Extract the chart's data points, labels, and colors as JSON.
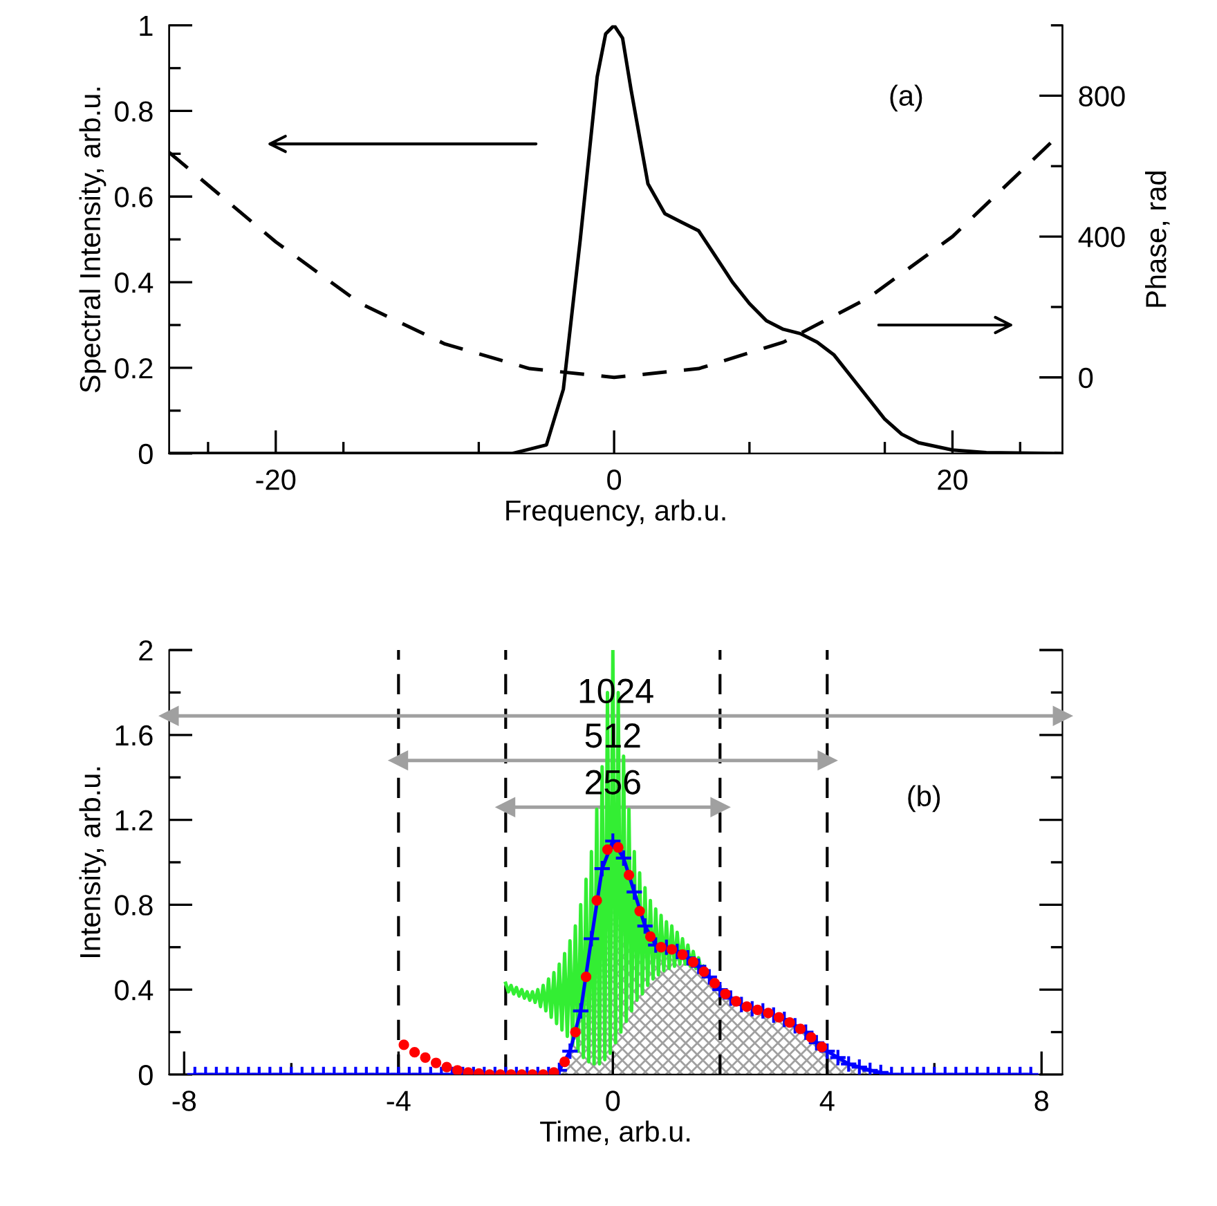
{
  "chart_data": [
    {
      "type": "line",
      "xlabel": "Frequency, arb.u.",
      "ylabel": "Spectral Intensity, arb.u.",
      "y2label": "Phase, rad",
      "xlim": [
        -26.3,
        26.5
      ],
      "xticks": [
        {
          "value": -24,
          "label": null
        },
        -20,
        {
          "value": -16,
          "label": null
        },
        {
          "value": -8,
          "label": null
        },
        0,
        {
          "value": 8,
          "label": null
        },
        {
          "value": 16,
          "label": null
        },
        20,
        {
          "value": 24,
          "label": null
        }
      ],
      "ylim": [
        0,
        1
      ],
      "yticks": [
        0,
        {
          "value": 0.1,
          "label": null
        },
        0.2,
        {
          "value": 0.3,
          "label": null
        },
        0.4,
        {
          "value": 0.5,
          "label": null
        },
        0.6,
        {
          "value": 0.7,
          "label": null
        },
        0.8,
        {
          "value": 0.9,
          "label": null
        },
        1
      ],
      "y2lim": [
        -216,
        1000
      ],
      "y2ticks": [
        0,
        {
          "value": 200,
          "label": null
        },
        400,
        {
          "value": 600,
          "label": null
        },
        800,
        {
          "value": 1000,
          "label": null
        }
      ],
      "annotations": [
        "(a)"
      ],
      "grid": false,
      "legend": false,
      "series": [
        {
          "color": "#000000",
          "line_style": "solid",
          "x": [
            -26.3,
            -6,
            -4,
            -3,
            -2,
            -1,
            -0.5,
            0,
            0.5,
            1,
            2,
            3,
            4,
            5,
            6,
            7,
            8,
            9,
            10,
            11,
            12,
            13,
            14,
            15,
            16,
            17,
            18,
            20,
            22,
            26.5
          ],
          "values": [
            0,
            0,
            0.02,
            0.15,
            0.5,
            0.88,
            0.98,
            1,
            0.97,
            0.85,
            0.63,
            0.56,
            0.54,
            0.52,
            0.46,
            0.4,
            0.35,
            0.31,
            0.29,
            0.28,
            0.26,
            0.23,
            0.18,
            0.13,
            0.08,
            0.045,
            0.025,
            0.008,
            0.002,
            0
          ]
        },
        {
          "color": "#000000",
          "line_style": "dashed",
          "axis": "y2",
          "x": [
            -26.3,
            -20,
            -15,
            -10,
            -5,
            0,
            5,
            10,
            15,
            20,
            26.5
          ],
          "values": [
            639,
            385,
            210,
            95,
            25,
            0,
            25,
            100,
            225,
            400,
            698
          ]
        }
      ]
    },
    {
      "type": "line",
      "xlabel": "Time, arb.u.",
      "ylabel": "Intensity, arb.u.",
      "xlim": [
        -8.28,
        8.39
      ],
      "xticks": [
        -8,
        {
          "value": -6,
          "label": null
        },
        -4,
        {
          "value": -2,
          "label": null
        },
        0,
        {
          "value": 2,
          "label": null
        },
        4,
        {
          "value": 6,
          "label": null
        },
        8
      ],
      "ylim": [
        0,
        2
      ],
      "yticks": [
        0,
        {
          "value": 0.2,
          "label": null
        },
        0.4,
        {
          "value": 0.6,
          "label": null
        },
        0.8,
        {
          "value": 1.0,
          "label": null
        },
        1.2,
        {
          "value": 1.4,
          "label": null
        },
        1.6,
        {
          "value": 1.8,
          "label": null
        },
        2
      ],
      "annotations": [
        "(b)"
      ],
      "grid": false,
      "legend": false,
      "ref_lines": [
        {
          "axis": "x",
          "value": -4,
          "color": "#000000",
          "line_style": "dashed"
        },
        {
          "axis": "x",
          "value": -2,
          "color": "#000000",
          "line_style": "dashed"
        },
        {
          "axis": "x",
          "value": 2,
          "color": "#000000",
          "line_style": "dashed"
        },
        {
          "axis": "x",
          "value": 4,
          "color": "#000000",
          "line_style": "dashed"
        }
      ],
      "series": [
        {
          "name": "1024",
          "color": "#a0a0a0",
          "line_style": "solid",
          "marker": "triangle",
          "x": [
            -8.28,
            8.39
          ],
          "values": [
            1.69,
            1.69
          ]
        },
        {
          "name": "512",
          "color": "#a0a0a0",
          "line_style": "solid",
          "marker": "triangle",
          "x": [
            -4,
            4
          ],
          "values": [
            1.48,
            1.48
          ]
        },
        {
          "name": "256",
          "color": "#a0a0a0",
          "line_style": "solid",
          "marker": "triangle",
          "x": [
            -2,
            2
          ],
          "values": [
            1.26,
            1.26
          ]
        },
        {
          "type": "area",
          "color": "#a0a0a0",
          "x": [
            -1.2,
            -1.0,
            -0.8,
            -0.6,
            -0.4,
            -0.2,
            0,
            0.2,
            0.4,
            0.6,
            0.8,
            1.0,
            1.2,
            1.4,
            1.6,
            1.8,
            2.0,
            2.2,
            2.4,
            2.6,
            2.8,
            3.0,
            3.2,
            3.4,
            3.6,
            3.8,
            4.0,
            4.2,
            4.4,
            4.6,
            4.8,
            5.0,
            5.2
          ],
          "values": [
            0,
            0.02,
            0.11,
            0.3,
            0.64,
            0.97,
            1.1,
            1.02,
            0.86,
            0.7,
            0.61,
            0.6,
            0.58,
            0.55,
            0.51,
            0.46,
            0.4,
            0.36,
            0.33,
            0.31,
            0.3,
            0.28,
            0.26,
            0.23,
            0.2,
            0.15,
            0.11,
            0.08,
            0.05,
            0.035,
            0.02,
            0.01,
            0
          ]
        },
        {
          "color": "#33ee33",
          "line_style": "solid",
          "x": [
            -2.0,
            -1.95,
            -1.9,
            -1.85,
            -1.8,
            -1.75,
            -1.7,
            -1.65,
            -1.6,
            -1.55,
            -1.5,
            -1.45,
            -1.4,
            -1.35,
            -1.3,
            -1.25,
            -1.2,
            -1.15,
            -1.1,
            -1.05,
            -1.0,
            -0.95,
            -0.9,
            -0.85,
            -0.8,
            -0.75,
            -0.7,
            -0.65,
            -0.6,
            -0.55,
            -0.5,
            -0.45,
            -0.4,
            -0.35,
            -0.3,
            -0.25,
            -0.2,
            -0.15,
            -0.1,
            -0.05,
            0.0,
            0.05,
            0.1,
            0.15,
            0.2,
            0.25,
            0.3,
            0.35,
            0.4,
            0.45,
            0.5,
            0.55,
            0.6,
            0.65,
            0.7,
            0.75,
            0.8,
            0.85,
            0.9,
            0.95,
            1.0,
            1.05,
            1.1,
            1.15,
            1.2,
            1.25,
            1.3,
            1.35,
            1.4,
            1.45,
            1.5,
            1.55,
            1.6,
            1.65,
            1.7
          ],
          "values": [
            0.43,
            0.39,
            0.42,
            0.38,
            0.41,
            0.37,
            0.4,
            0.36,
            0.39,
            0.35,
            0.39,
            0.34,
            0.4,
            0.32,
            0.42,
            0.3,
            0.45,
            0.27,
            0.48,
            0.24,
            0.52,
            0.21,
            0.57,
            0.18,
            0.63,
            0.14,
            0.7,
            0.11,
            0.8,
            0.08,
            0.92,
            0.06,
            1.05,
            0.05,
            1.25,
            0.05,
            1.45,
            0.07,
            1.8,
            0.1,
            2.0,
            0.15,
            1.8,
            0.2,
            1.5,
            0.25,
            1.25,
            0.3,
            1.05,
            0.35,
            0.95,
            0.38,
            0.88,
            0.42,
            0.82,
            0.45,
            0.78,
            0.47,
            0.75,
            0.49,
            0.72,
            0.5,
            0.7,
            0.51,
            0.67,
            0.52,
            0.64,
            0.52,
            0.61,
            0.51,
            0.58,
            0.5,
            0.55,
            0.48,
            0.51
          ]
        },
        {
          "color": "#0000ff",
          "line_style": "solid",
          "marker": "cross",
          "x": [
            -7.8,
            -7.6,
            -7.4,
            -7.2,
            -7.0,
            -6.8,
            -6.6,
            -6.4,
            -6.2,
            -6.0,
            -5.8,
            -5.6,
            -5.4,
            -5.2,
            -5.0,
            -4.8,
            -4.6,
            -4.4,
            -4.2,
            -4.0,
            -3.8,
            -3.6,
            -3.4,
            -3.2,
            -3.0,
            -2.8,
            -2.6,
            -2.4,
            -2.2,
            -2.0,
            -1.8,
            -1.6,
            -1.4,
            -1.2,
            -1.0,
            -0.8,
            -0.6,
            -0.4,
            -0.2,
            0,
            0.2,
            0.4,
            0.6,
            0.8,
            1.0,
            1.2,
            1.4,
            1.6,
            1.8,
            2.0,
            2.2,
            2.4,
            2.6,
            2.8,
            3.0,
            3.2,
            3.4,
            3.6,
            3.8,
            4.0,
            4.2,
            4.4,
            4.6,
            4.8,
            5.0,
            5.2,
            5.4,
            5.6,
            5.8,
            6.0,
            6.2,
            6.4,
            6.6,
            6.8,
            7.0,
            7.2,
            7.4,
            7.6,
            7.8
          ],
          "values": [
            0,
            0,
            0,
            0,
            0,
            0,
            0,
            0,
            0,
            0,
            0,
            0,
            0,
            0,
            0,
            0,
            0,
            0,
            0,
            0,
            0,
            0,
            0,
            0,
            0,
            0,
            0,
            0,
            0,
            0,
            0,
            0,
            0,
            0,
            0.02,
            0.11,
            0.3,
            0.64,
            0.97,
            1.1,
            1.02,
            0.86,
            0.7,
            0.61,
            0.6,
            0.58,
            0.55,
            0.51,
            0.46,
            0.4,
            0.36,
            0.33,
            0.31,
            0.3,
            0.28,
            0.26,
            0.23,
            0.2,
            0.15,
            0.11,
            0.08,
            0.05,
            0.035,
            0.02,
            0.01,
            0,
            0,
            0,
            0,
            0,
            0,
            0,
            0,
            0,
            0,
            0,
            0,
            0,
            0
          ]
        },
        {
          "type": "scatter",
          "color": "#ff0000",
          "marker": "circle",
          "x": [
            -3.9,
            -3.7,
            -3.5,
            -3.3,
            -3.1,
            -2.9,
            -2.7,
            -2.5,
            -2.3,
            -2.1,
            -1.9,
            -1.7,
            -1.5,
            -1.3,
            -1.1,
            -0.9,
            -0.7,
            -0.5,
            -0.3,
            -0.1,
            0.1,
            0.3,
            0.5,
            0.7,
            0.9,
            1.1,
            1.3,
            1.5,
            1.7,
            1.9,
            2.1,
            2.3,
            2.5,
            2.7,
            2.9,
            3.1,
            3.3,
            3.5,
            3.7,
            3.9
          ],
          "values": [
            0.14,
            0.105,
            0.08,
            0.055,
            0.035,
            0.02,
            0.01,
            0.005,
            0,
            0,
            0,
            0,
            0,
            0,
            0.01,
            0.06,
            0.2,
            0.46,
            0.82,
            1.06,
            1.07,
            0.94,
            0.77,
            0.65,
            0.6,
            0.59,
            0.565,
            0.53,
            0.485,
            0.43,
            0.38,
            0.345,
            0.32,
            0.305,
            0.29,
            0.27,
            0.245,
            0.215,
            0.175,
            0.13
          ]
        }
      ]
    }
  ]
}
